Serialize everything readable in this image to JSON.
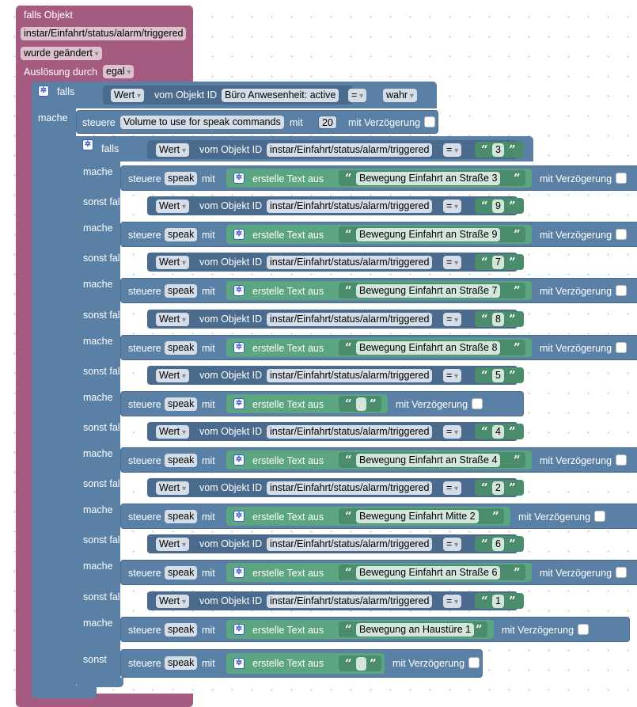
{
  "outer": {
    "header": "falls Objekt",
    "object_id": "instar/Einfahrt/status/alarm/triggered",
    "changed": "wurde geändert",
    "trigger_label": "Auslösung durch",
    "trigger_value": "egal"
  },
  "first_if": {
    "if_label": "falls",
    "do_label": "mache",
    "value": "Wert",
    "from_label": "vom Objekt ID",
    "object_id": "Büro Anwesenheit: active",
    "op": "=",
    "bool": "wahr",
    "control": {
      "label": "steuere",
      "target": "Volume to use for speak commands",
      "with": "mit",
      "number": "20",
      "delay": "mit Verzögerung"
    }
  },
  "common": {
    "value": "Wert",
    "from_label": "vom Objekt ID",
    "object_id": "instar/Einfahrt/status/alarm/triggered",
    "op": "=",
    "steuere": "steuere",
    "speak": "speak",
    "mit": "mit",
    "create_text": "erstelle Text aus",
    "delay": "mit Verzögerung",
    "else_label": "sonst",
    "open_quote": "“",
    "close_quote": "”"
  },
  "branches": [
    {
      "label": "falls",
      "do": "mache",
      "value": "3",
      "text": "Bewegung Einfahrt an Straße 3"
    },
    {
      "label": "sonst falls",
      "do": "mache",
      "value": "9",
      "text": "Bewegung Einfahrt an Straße 9"
    },
    {
      "label": "sonst falls",
      "do": "mache",
      "value": "7",
      "text": "Bewegung Einfahrt an Straße 7"
    },
    {
      "label": "sonst falls",
      "do": "mache",
      "value": "8",
      "text": "Bewegung Einfahrt an Straße 8"
    },
    {
      "label": "sonst falls",
      "do": "mache",
      "value": "5",
      "text": ""
    },
    {
      "label": "sonst falls",
      "do": "mache",
      "value": "4",
      "text": "Bewegung Einfahrt an Straße 4"
    },
    {
      "label": "sonst falls",
      "do": "mache",
      "value": "2",
      "text": "Bewegung Einfahrt Mitte 2"
    },
    {
      "label": "sonst falls",
      "do": "mache",
      "value": "6",
      "text": "Bewegung Einfahrt an Straße 6"
    },
    {
      "label": "sonst falls",
      "do": "mache",
      "value": "1",
      "text": "Bewegung an Haustüre 1"
    }
  ],
  "colors": {
    "event_block": "#a55b80",
    "logic_block": "#5b80a5",
    "text_block": "#5ba580",
    "gear_icon": "#3a5ac8"
  }
}
